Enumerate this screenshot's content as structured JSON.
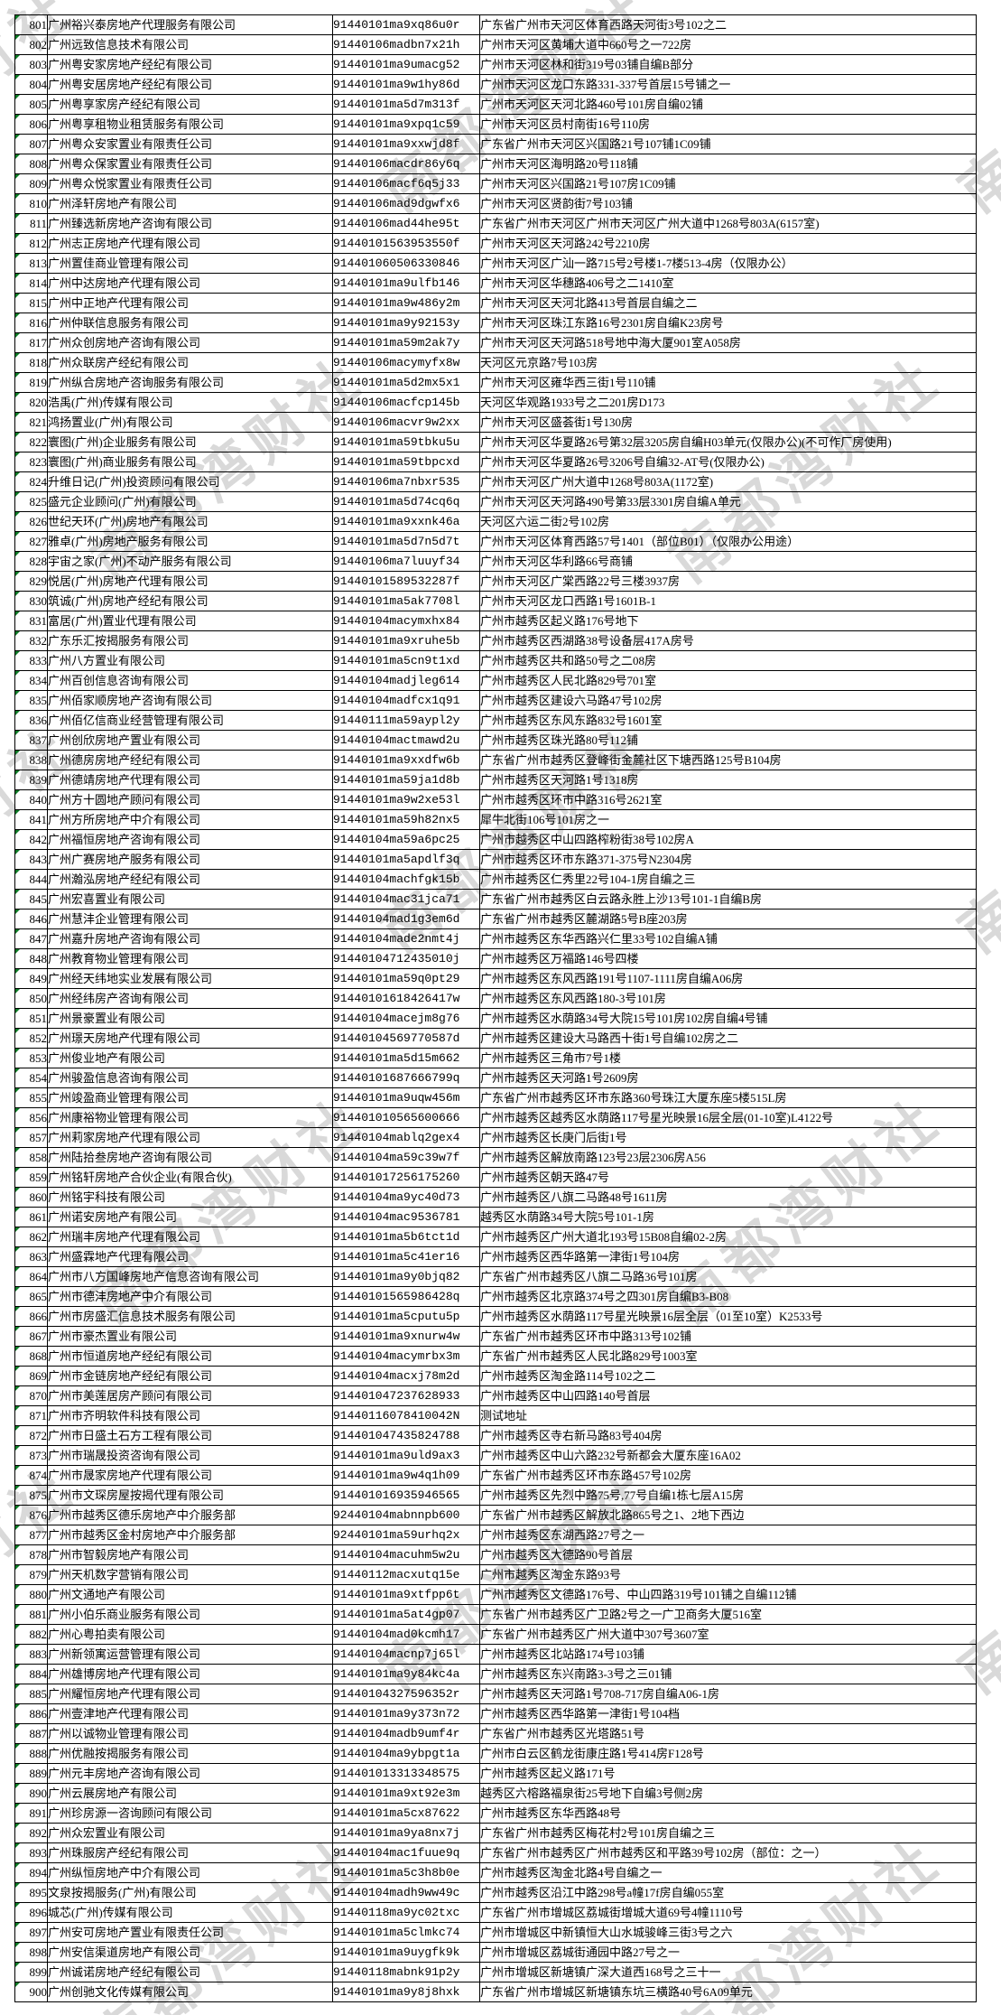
{
  "watermark": {
    "text": "南都湾财社",
    "color": "#d9d9d9"
  },
  "table": {
    "columns": [
      "row_no",
      "company_name",
      "credit_code",
      "address"
    ],
    "rows": [
      {
        "no": "801",
        "name": "广州裕兴泰房地产代理服务有限公司",
        "code": "91440101ma9xq86u0r",
        "addr": "广东省广州市天河区体育西路天河街3号102之二"
      },
      {
        "no": "802",
        "name": "广州远致信息技术有限公司",
        "code": "91440106madbn7x21h",
        "addr": "广州市天河区黄埔大道中660号之一722房"
      },
      {
        "no": "803",
        "name": "广州粤安家房地产经纪有限公司",
        "code": "91440101ma9umacg52",
        "addr": "广州市天河区林和街319号03铺自编B部分"
      },
      {
        "no": "804",
        "name": "广州粤安居房地产经纪有限公司",
        "code": "91440101ma9w1hy86d",
        "addr": "广州市天河区龙口东路331-337号首层15号铺之一"
      },
      {
        "no": "805",
        "name": "广州粤享家房产经纪有限公司",
        "code": "91440101ma5d7m313f",
        "addr": "广州市天河区天河北路460号101房自编02铺"
      },
      {
        "no": "806",
        "name": "广州粤享租物业租赁服务有限公司",
        "code": "91440101ma9xpq1c59",
        "addr": "广州市天河区员村南街16号110房"
      },
      {
        "no": "807",
        "name": "广州粤众安家置业有限责任公司",
        "code": "91440101ma9xxwjd8f",
        "addr": "广东省广州市天河区兴国路21号107铺1C09铺"
      },
      {
        "no": "808",
        "name": "广州粤众保家置业有限责任公司",
        "code": "91440106macdr86y6q",
        "addr": "广州市天河区海明路20号118铺"
      },
      {
        "no": "809",
        "name": "广州粤众悦家置业有限责任公司",
        "code": "91440106macf6q5j33",
        "addr": "广州市天河区兴国路21号107房1C09铺"
      },
      {
        "no": "810",
        "name": "广州泽轩房地产有限公司",
        "code": "91440106mad9dgwfx6",
        "addr": "广州市天河区贤韵街7号103铺"
      },
      {
        "no": "811",
        "name": "广州臻选新房地产咨询有限公司",
        "code": "91440106mad44he95t",
        "addr": "广东省广州市天河区广州市天河区广州大道中1268号803A(6157室)"
      },
      {
        "no": "812",
        "name": "广州志正房地产代理有限公司",
        "code": "91440101563953550f",
        "addr": "广州市天河区天河路242号2210房"
      },
      {
        "no": "813",
        "name": "广州置佳商业管理有限公司",
        "code": "914401060506330846",
        "addr": "广州市天河区广汕一路715号2号楼1-7楼513-4房（仅限办公）"
      },
      {
        "no": "814",
        "name": "广州中达房地产代理有限公司",
        "code": "91440101ma9ulfb146",
        "addr": "广州市天河区华穗路406号之二1410室"
      },
      {
        "no": "815",
        "name": "广州中正地产代理有限公司",
        "code": "91440101ma9w486y2m",
        "addr": "广州市天河区天河北路413号首层自编之二"
      },
      {
        "no": "816",
        "name": "广州仲联信息服务有限公司",
        "code": "91440101ma9y92153y",
        "addr": "广州市天河区珠江东路16号2301房自编K23房号"
      },
      {
        "no": "817",
        "name": "广州众创房地产咨询有限公司",
        "code": "91440101ma59m2ak7y",
        "addr": "广州市天河区天河路518号地中海大厦901室A058房"
      },
      {
        "no": "818",
        "name": "广州众联房产经纪有限公司",
        "code": "91440106macymyfx8w",
        "addr": "天河区元京路7号103房"
      },
      {
        "no": "819",
        "name": "广州纵合房地产咨询服务有限公司",
        "code": "91440101ma5d2mx5x1",
        "addr": "广州市天河区雍华西三街1号110铺"
      },
      {
        "no": "820",
        "name": "浩禹(广州)传媒有限公司",
        "code": "91440106macfcp145b",
        "addr": "天河区华观路1933号之二201房D173"
      },
      {
        "no": "821",
        "name": "鸿扬置业(广州)有限公司",
        "code": "91440106macvr9w2xx",
        "addr": "广州市天河区盛荟街1号130房"
      },
      {
        "no": "822",
        "name": "寰图(广州)企业服务有限公司",
        "code": "91440101ma59tbku5u",
        "addr": "广州市天河区华夏路26号第32层3205房自编H03单元(仅限办公)(不可作厂房使用)"
      },
      {
        "no": "823",
        "name": "寰图(广州)商业服务有限公司",
        "code": "91440101ma59tbpcxd",
        "addr": "广州市天河区华夏路26号3206号自编32-AT号(仅限办公)"
      },
      {
        "no": "824",
        "name": "升维日记(广州)投资顾问有限公司",
        "code": "91440106ma7nbxr535",
        "addr": "广州市天河区广州大道中1268号803A(1172室)"
      },
      {
        "no": "825",
        "name": "盛元企业顾问(广州)有限公司",
        "code": "91440101ma5d74cq6q",
        "addr": "广州市天河区天河路490号第33层3301房自编A单元"
      },
      {
        "no": "826",
        "name": "世纪天环(广州)房地产有限公司",
        "code": "91440101ma9xxnk46a",
        "addr": "天河区六运二街2号102房"
      },
      {
        "no": "827",
        "name": "雅卓(广州)房地产服务有限公司",
        "code": "91440101ma5d7n5d7t",
        "addr": "广州市天河区体育西路57号1401（部位B01）（仅限办公用途）"
      },
      {
        "no": "828",
        "name": "宇宙之家(广州)不动产服务有限公司",
        "code": "91440106ma7luuyf34",
        "addr": "广州市天河区华利路66号商铺"
      },
      {
        "no": "829",
        "name": "悦居(广州)房地产代理有限公司",
        "code": "91440101589532287f",
        "addr": "广州市天河区广棠西路22号三楼3937房"
      },
      {
        "no": "830",
        "name": "筑诚(广州)房地产经纪有限公司",
        "code": "91440101ma5ak7708l",
        "addr": "广州市天河区龙口西路1号1601B-1"
      },
      {
        "no": "831",
        "name": "富居(广州)置业代理有限公司",
        "code": "91440104macymxhx84",
        "addr": "广州市越秀区起义路176号地下"
      },
      {
        "no": "832",
        "name": "广东乐汇按揭服务有限公司",
        "code": "91440101ma9xruhe5b",
        "addr": "广州市越秀区西湖路38号设备层417A房号"
      },
      {
        "no": "833",
        "name": "广州八方置业有限公司",
        "code": "91440101ma5cn9t1xd",
        "addr": "广州市越秀区共和路50号之二08房"
      },
      {
        "no": "834",
        "name": "广州百创信息咨询有限公司",
        "code": "91440104madjleg614",
        "addr": "广州市越秀区人民北路829号701室"
      },
      {
        "no": "835",
        "name": "广州佰家顺房地产咨询有限公司",
        "code": "91440104madfcx1q91",
        "addr": "广州市越秀区建设六马路47号102房"
      },
      {
        "no": "836",
        "name": "广州佰亿信商业经营管理有限公司",
        "code": "91440111ma59aypl2y",
        "addr": "广州市越秀区东风东路832号1601室"
      },
      {
        "no": "837",
        "name": "广州创欣房地产置业有限公司",
        "code": "91440104mactmawd2u",
        "addr": "广州市越秀区珠光路80号112铺"
      },
      {
        "no": "838",
        "name": "广州德房房地产经纪有限公司",
        "code": "91440101ma9xxdfw6b",
        "addr": "广东省广州市越秀区登峰街金麓社区下塘西路125号B104房"
      },
      {
        "no": "839",
        "name": "广州德靖房地产代理有限公司",
        "code": "91440101ma59ja1d8b",
        "addr": "广州市越秀区天河路1号1318房"
      },
      {
        "no": "840",
        "name": "广州方十圆地产顾问有限公司",
        "code": "91440101ma9w2xe53l",
        "addr": "广州市越秀区环市中路316号2621室"
      },
      {
        "no": "841",
        "name": "广州方所房地产中介有限公司",
        "code": "91440101ma59h82nx5",
        "addr": "犀牛北街106号101房之一"
      },
      {
        "no": "842",
        "name": "广州福恒房地产咨询有限公司",
        "code": "91440104ma59a6pc25",
        "addr": "广州市越秀区中山四路榨粉街38号102房A"
      },
      {
        "no": "843",
        "name": "广州广赛房地产服务有限公司",
        "code": "91440101ma5apdlf3q",
        "addr": "广州市越秀区环市东路371-375号N2304房"
      },
      {
        "no": "844",
        "name": "广州瀚泓房地产经纪有限公司",
        "code": "91440104machfgk15b",
        "addr": "广州市越秀区仁秀里22号104-1房自编之三"
      },
      {
        "no": "845",
        "name": "广州宏喜置业有限公司",
        "code": "91440104mac31jca71",
        "addr": "广东省广州市越秀区白云路永胜上沙13号101-1自编B房"
      },
      {
        "no": "846",
        "name": "广州慧沣企业管理有限公司",
        "code": "91440104mad1g3em6d",
        "addr": "广东省广州市越秀区麓湖路5号B座203房"
      },
      {
        "no": "847",
        "name": "广州嘉升房地产咨询有限公司",
        "code": "91440104made2nmt4j",
        "addr": "广州市越秀区东华西路兴仁里33号102自编A铺"
      },
      {
        "no": "848",
        "name": "广州教育物业管理有限公司",
        "code": "91440104712435010j",
        "addr": "广州市越秀区万福路146号四楼"
      },
      {
        "no": "849",
        "name": "广州经天纬地实业发展有限公司",
        "code": "91440101ma59q0pt29",
        "addr": "广州市越秀区东风西路191号1107-1111房自编A06房"
      },
      {
        "no": "850",
        "name": "广州经纬房产咨询有限公司",
        "code": "91440101618426417w",
        "addr": "广州市越秀区东风西路180-3号101房"
      },
      {
        "no": "851",
        "name": "广州景豪置业有限公司",
        "code": "91440104macejm8g76",
        "addr": "广州市越秀区水荫路34号大院15号101房102房自编4号铺"
      },
      {
        "no": "852",
        "name": "广州璟天房地产代理有限公司",
        "code": "91440104569770587d",
        "addr": "广州市越秀区建设大马路西十街1号自编102房之二"
      },
      {
        "no": "853",
        "name": "广州俊业地产有限公司",
        "code": "91440101ma5d15m662",
        "addr": "广州市越秀区三角市7号1楼"
      },
      {
        "no": "854",
        "name": "广州骏盈信息咨询有限公司",
        "code": "91440101687666799q",
        "addr": "广州市越秀区天河路1号2609房"
      },
      {
        "no": "855",
        "name": "广州竣盈商业管理有限公司",
        "code": "91440101ma9uqw456m",
        "addr": "广东省广州市越秀区环市东路360号珠江大厦东座5楼515L房"
      },
      {
        "no": "856",
        "name": "广州康裕物业管理有限公司",
        "code": "914401010565600666",
        "addr": "广州市越秀区越秀区水荫路117号星光映景16层全层(01-10室)L4122号"
      },
      {
        "no": "857",
        "name": "广州莉家房地产代理有限公司",
        "code": "91440104mablq2gex4",
        "addr": "广州市越秀区长庚门后街1号"
      },
      {
        "no": "858",
        "name": "广州陆拾叁房地产咨询有限公司",
        "code": "91440104ma59c39w7f",
        "addr": "广州市越秀区解放南路123号23层2306房A56"
      },
      {
        "no": "859",
        "name": "广州铭轩房地产合伙企业(有限合伙)",
        "code": "914401017256175260",
        "addr": "广州市越秀区朝天路47号"
      },
      {
        "no": "860",
        "name": "广州铭宇科技有限公司",
        "code": "91440104ma9yc40d73",
        "addr": "广州市越秀区八旗二马路48号1611房"
      },
      {
        "no": "861",
        "name": "广州诺安房地产有限公司",
        "code": "91440104mac9536781",
        "addr": "越秀区水荫路34号大院5号101-1房"
      },
      {
        "no": "862",
        "name": "广州瑞丰房地产代理有限公司",
        "code": "91440101ma5b6tct1d",
        "addr": "广州市越秀区广州大道北193号15B08自编02-2房"
      },
      {
        "no": "863",
        "name": "广州盛霖地产代理有限公司",
        "code": "91440101ma5c41er16",
        "addr": "广州市越秀区西华路第一津街1号104房"
      },
      {
        "no": "864",
        "name": "广州市八方国峰房地产信息咨询有限公司",
        "code": "91440101ma9y0bjq82",
        "addr": "广东省广州市越秀区八旗二马路36号101房"
      },
      {
        "no": "865",
        "name": "广州市德沣房地产中介有限公司",
        "code": "91440101565986428q",
        "addr": "广州市越秀区北京路374号之四301房自编B3-B08"
      },
      {
        "no": "866",
        "name": "广州市房盛汇信息技术服务有限公司",
        "code": "91440101ma5cputu5p",
        "addr": "广州市越秀区水荫路117号星光映景16层全层（01至10室）K2533号"
      },
      {
        "no": "867",
        "name": "广州市豪杰置业有限公司",
        "code": "91440101ma9xnurw4w",
        "addr": "广东省广州市越秀区环市中路313号102铺"
      },
      {
        "no": "868",
        "name": "广州市恒道房地产经纪有限公司",
        "code": "91440104macymrbx3m",
        "addr": "广东省广州市越秀区人民北路829号1003室"
      },
      {
        "no": "869",
        "name": "广州市金链房地产经纪有限公司",
        "code": "91440104macxj78m2d",
        "addr": "广州市越秀区淘金路114号102之二"
      },
      {
        "no": "870",
        "name": "广州市美莲居房产顾问有限公司",
        "code": "914401047237628933",
        "addr": "广州市越秀区中山四路140号首层"
      },
      {
        "no": "871",
        "name": "广州市齐明软件科技有限公司",
        "code": "91440116078410042N",
        "addr": "测试地址"
      },
      {
        "no": "872",
        "name": "广州市日盛土石方工程有限公司",
        "code": "914401047435824788",
        "addr": "广州市越秀区寺右新马路83号404房"
      },
      {
        "no": "873",
        "name": "广州市瑞晟投资咨询有限公司",
        "code": "91440101ma9uld9ax3",
        "addr": "广州市越秀区中山六路232号新都会大厦东座16A02"
      },
      {
        "no": "874",
        "name": "广州市晟家房地产代理有限公司",
        "code": "91440101ma9w4q1h09",
        "addr": "广东省广州市越秀区环市东路457号102房"
      },
      {
        "no": "875",
        "name": "广州市文琛房屋按揭代理有限公司",
        "code": "914401016935946565",
        "addr": "广州市越秀区先烈中路75号,77号自编1栋七层A15房"
      },
      {
        "no": "876",
        "name": "广州市越秀区德乐房地产中介服务部",
        "code": "92440104mabnnpb600",
        "addr": "广东省广州市越秀区解放北路865号之1、2地下西边"
      },
      {
        "no": "877",
        "name": "广州市越秀区金村房地产中介服务部",
        "code": "92440101ma59urhq2x",
        "addr": "广州市越秀区东湖西路27号之一"
      },
      {
        "no": "878",
        "name": "广州市智毅房地产有限公司",
        "code": "91440104macuhm5w2u",
        "addr": "广州市越秀区大德路90号首层"
      },
      {
        "no": "879",
        "name": "广州天机数字营销有限公司",
        "code": "91440112macxutq15e",
        "addr": "广州市越秀区淘金东路93号"
      },
      {
        "no": "880",
        "name": "广州文通地产有限公司",
        "code": "91440101ma9xtfpp6t",
        "addr": "广州市越秀区文德路176号、中山四路319号101铺之自编112铺"
      },
      {
        "no": "881",
        "name": "广州小伯乐商业服务有限公司",
        "code": "91440101ma5at4gp07",
        "addr": "广东省广州市越秀区广卫路2号之一广卫商务大厦516室"
      },
      {
        "no": "882",
        "name": "广州心粤拍卖有限公司",
        "code": "91440104mad0kcmh17",
        "addr": "广东省广州市越秀区广州大道中307号3607室"
      },
      {
        "no": "883",
        "name": "广州新领寓运营管理有限公司",
        "code": "91440104macnp7j65l",
        "addr": "广州市越秀区北站路174号103铺"
      },
      {
        "no": "884",
        "name": "广州雄博房地产代理有限公司",
        "code": "91440101ma9y84kc4a",
        "addr": "广州市越秀区东兴南路3-3号之三01铺"
      },
      {
        "no": "885",
        "name": "广州耀恒房地产代理有限公司",
        "code": "91440104327596352r",
        "addr": "广州市越秀区天河路1号708-717房自编A06-1房"
      },
      {
        "no": "886",
        "name": "广州壹津地产代理有限公司",
        "code": "91440101ma9y373n72",
        "addr": "广州市越秀区西华路第一津街1号104档"
      },
      {
        "no": "887",
        "name": "广州以诚物业管理有限公司",
        "code": "91440104madb9umf4r",
        "addr": "广东省广州市越秀区光塔路51号"
      },
      {
        "no": "888",
        "name": "广州优融按揭服务有限公司",
        "code": "91440104ma9ybpgt1a",
        "addr": "广州市白云区鹤龙街康庄路1号414房F128号"
      },
      {
        "no": "889",
        "name": "广州元丰房地产咨询有限公司",
        "code": "914401013313348575",
        "addr": "广州市越秀区起义路171号"
      },
      {
        "no": "890",
        "name": "广州云展房地产有限公司",
        "code": "91440101ma9xt92e3m",
        "addr": "越秀区六榕路福泉街25号地下自编3号侧2房"
      },
      {
        "no": "891",
        "name": "广州珍房源一咨询顾问有限公司",
        "code": "91440101ma5cx87622",
        "addr": "广州市越秀区东华西路48号"
      },
      {
        "no": "892",
        "name": "广州众宏置业有限公司",
        "code": "91440101ma9ya8nx7j",
        "addr": "广东省广州市越秀区梅花村2号101房自编之三"
      },
      {
        "no": "893",
        "name": "广州珠服房产经纪有限公司",
        "code": "91440104mac1fuue9q",
        "addr": "广东省广州市越秀区广州市越秀区和平路39号102房（部位：之一）"
      },
      {
        "no": "894",
        "name": "广州纵恒房地产中介有限公司",
        "code": "91440101ma5c3h8b0e",
        "addr": "广州市越秀区淘金北路4号自编之一"
      },
      {
        "no": "895",
        "name": "文泉按揭服务(广州)有限公司",
        "code": "91440104madh9ww49c",
        "addr": "广州市越秀区沿江中路298号a幢17f房自编055室"
      },
      {
        "no": "896",
        "name": "城芯(广州)传媒有限公司",
        "code": "91440118ma9yc02txc",
        "addr": "广东省广州市增城区荔城街增城大道69号4幢1110号"
      },
      {
        "no": "897",
        "name": "广州安可房地产置业有限责任公司",
        "code": "91440101ma5clmkc74",
        "addr": "广州市增城区中新镇恒大山水城骏峰三街3号之六"
      },
      {
        "no": "898",
        "name": "广州安信渠道房地产有限公司",
        "code": "91440101ma9uygfk9k",
        "addr": "广州市增城区荔城街通园中路27号之一"
      },
      {
        "no": "899",
        "name": "广州诚诺房地产经纪有限公司",
        "code": "91440118mabnk91p2y",
        "addr": "广州市增城区新塘镇广深大道西168号之三十一"
      },
      {
        "no": "900",
        "name": "广州创驰文化传媒有限公司",
        "code": "91440101ma9y8j8hxk",
        "addr": "广东省广州市增城区新塘镇东坑三横路40号6A09单元"
      }
    ]
  }
}
